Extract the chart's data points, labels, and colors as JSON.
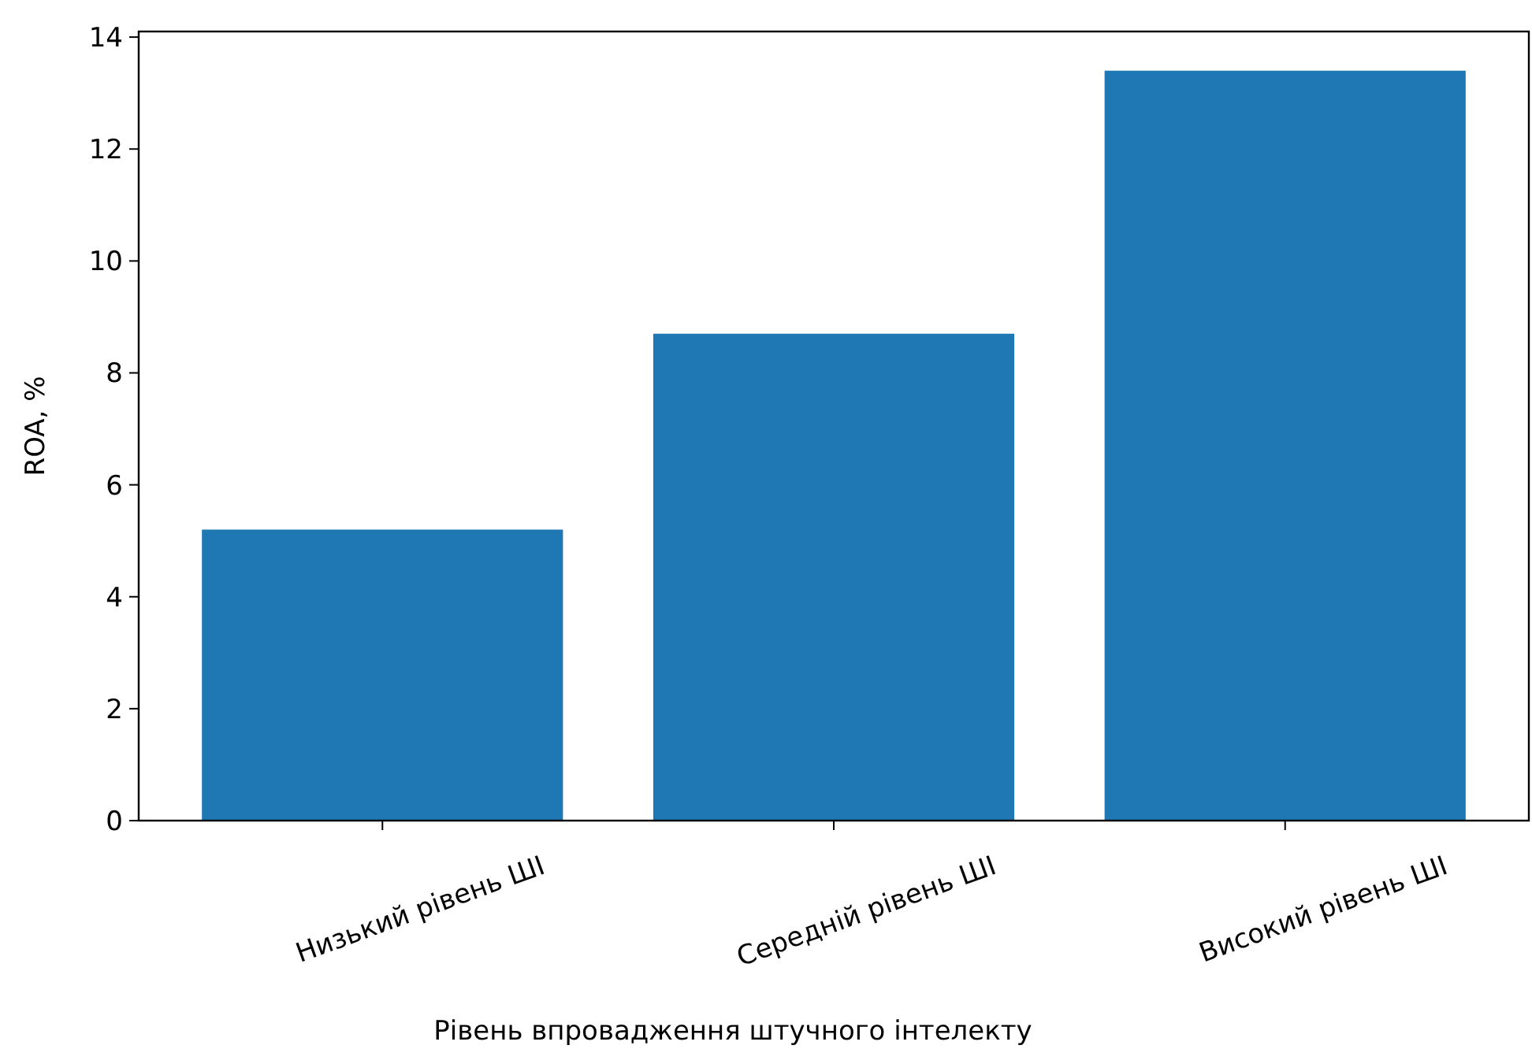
{
  "chart_data": {
    "type": "bar",
    "xlabel": "Рівень впровадження штучного інтелекту",
    "ylabel": "ROA, %",
    "categories": [
      "Низький рівень ШІ",
      "Середній рівень ШІ",
      "Високий рівень ШІ"
    ],
    "values": [
      5.2,
      8.7,
      13.4
    ],
    "color": "#1f77b4",
    "ylim": [
      0,
      14.1
    ],
    "yticks": [
      0,
      2,
      4,
      6,
      8,
      10,
      12,
      14
    ],
    "grid": false
  }
}
